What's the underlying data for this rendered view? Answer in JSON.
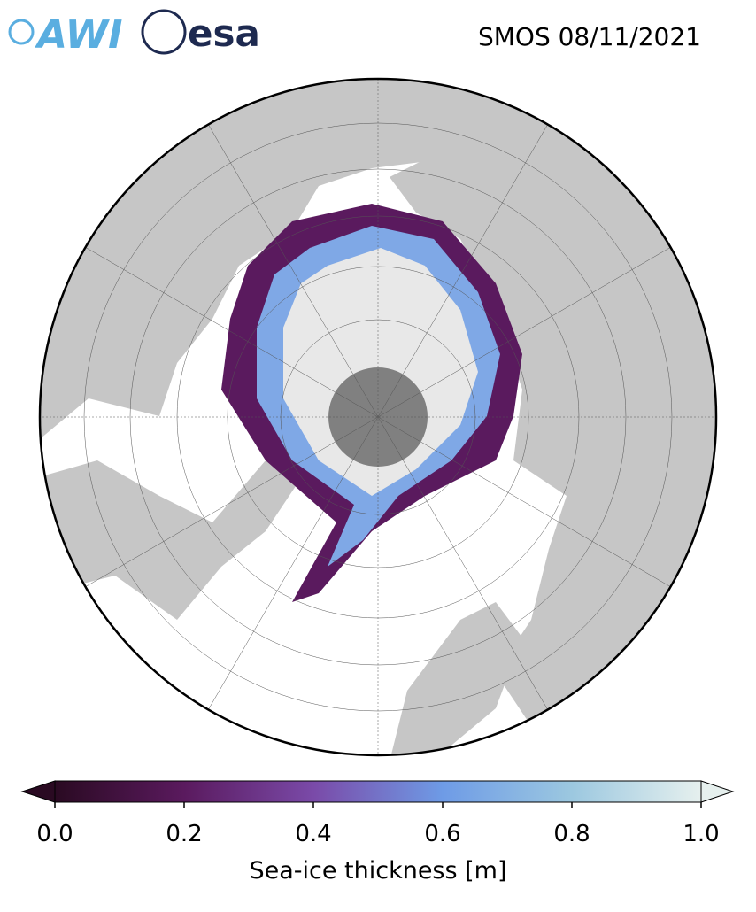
{
  "header": {
    "logos": [
      "AWI",
      "esa"
    ],
    "title": "SMOS 08/11/2021"
  },
  "colorbar": {
    "label": "Sea-ice thickness [m]",
    "lim": [
      0,
      1
    ],
    "ticks": [
      {
        "value": 0,
        "label": "0.0"
      },
      {
        "value": 0.2,
        "label": "0.2"
      },
      {
        "value": 0.4,
        "label": "0.4"
      },
      {
        "value": 0.6,
        "label": "0.6"
      },
      {
        "value": 0.8,
        "label": "0.8"
      },
      {
        "value": 1,
        "label": "1.0"
      }
    ],
    "colors": [
      "#2a0a22",
      "#5a1a5e",
      "#7a4aa8",
      "#6e9be6",
      "#9cc8e0",
      "#e6f0ee"
    ]
  }
}
